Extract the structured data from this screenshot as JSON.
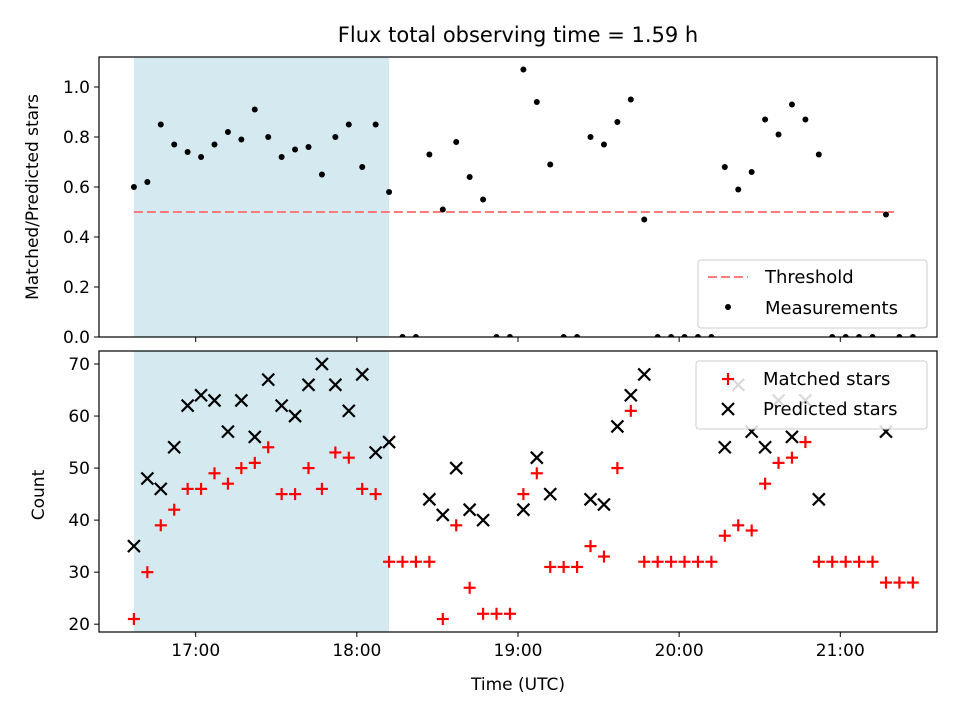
{
  "chart_data": [
    {
      "type": "scatter",
      "title": "Flux total observing time = 1.59 h",
      "xlabel": "",
      "ylabel": "Matched/Predicted stars",
      "xlim": [
        "16:24",
        "21:36"
      ],
      "ylim": [
        0,
        1.12
      ],
      "yticks": [
        "0.0",
        "0.2",
        "0.4",
        "0.6",
        "0.8",
        "1.0"
      ],
      "xticks": [
        "17:00",
        "18:00",
        "19:00",
        "20:00",
        "21:00"
      ],
      "shaded_span": [
        "16:37",
        "18:12"
      ],
      "shade_color": "#d4eaf0",
      "legend": "bottom-right",
      "threshold": {
        "name": "Threshold",
        "value": 0.5,
        "x": [
          "16:37",
          "21:20"
        ],
        "color": "#ff7b7b"
      },
      "measurements": {
        "name": "Measurements",
        "color": "#000000",
        "x": [
          "16:37",
          "16:42",
          "16:47",
          "16:52",
          "16:57",
          "17:02",
          "17:07",
          "17:12",
          "17:17",
          "17:22",
          "17:27",
          "17:32",
          "17:37",
          "17:42",
          "17:47",
          "17:52",
          "17:57",
          "18:02",
          "18:07",
          "18:12",
          "18:17",
          "18:22",
          "18:27",
          "18:32",
          "18:37",
          "18:42",
          "18:47",
          "18:52",
          "18:57",
          "19:02",
          "19:07",
          "19:12",
          "19:17",
          "19:22",
          "19:27",
          "19:32",
          "19:37",
          "19:42",
          "19:47",
          "19:52",
          "19:57",
          "20:02",
          "20:07",
          "20:12",
          "20:17",
          "20:22",
          "20:27",
          "20:32",
          "20:37",
          "20:42",
          "20:47",
          "20:52",
          "20:57",
          "21:02",
          "21:07",
          "21:12",
          "21:17",
          "21:22",
          "21:27"
        ],
        "y": [
          0.6,
          0.62,
          0.85,
          0.77,
          0.74,
          0.72,
          0.77,
          0.82,
          0.79,
          0.91,
          0.8,
          0.72,
          0.75,
          0.76,
          0.65,
          0.8,
          0.85,
          0.68,
          0.85,
          0.58,
          0,
          0,
          0.73,
          0.51,
          0.78,
          0.64,
          0.55,
          0,
          0,
          1.07,
          0.94,
          0.69,
          0,
          0,
          0.8,
          0.77,
          0.86,
          0.95,
          0.47,
          0,
          0,
          0,
          0,
          0,
          0.68,
          0.59,
          0.66,
          0.87,
          0.81,
          0.93,
          0.87,
          0.73,
          0,
          0,
          0,
          0,
          0.49,
          0,
          0
        ]
      }
    },
    {
      "type": "scatter",
      "title": "",
      "xlabel": "Time (UTC)",
      "ylabel": "Count",
      "xlim": [
        "16:24",
        "21:36"
      ],
      "ylim": [
        18.5,
        72.5
      ],
      "yticks": [
        "20",
        "30",
        "40",
        "50",
        "60",
        "70"
      ],
      "xticks": [
        "17:00",
        "18:00",
        "19:00",
        "20:00",
        "21:00"
      ],
      "shaded_span": [
        "16:37",
        "18:12"
      ],
      "legend": "top-right",
      "series": [
        {
          "name": "Matched stars",
          "marker": "+",
          "color": "#ff0000",
          "x": [
            "16:37",
            "16:42",
            "16:47",
            "16:52",
            "16:57",
            "17:02",
            "17:07",
            "17:12",
            "17:17",
            "17:22",
            "17:27",
            "17:32",
            "17:37",
            "17:42",
            "17:47",
            "17:52",
            "17:57",
            "18:02",
            "18:07",
            "18:12",
            "18:17",
            "18:22",
            "18:27",
            "18:32",
            "18:37",
            "18:42",
            "18:47",
            "18:52",
            "18:57",
            "19:02",
            "19:07",
            "19:12",
            "19:17",
            "19:22",
            "19:27",
            "19:32",
            "19:37",
            "19:42",
            "19:47",
            "19:52",
            "19:57",
            "20:02",
            "20:07",
            "20:12",
            "20:17",
            "20:22",
            "20:27",
            "20:32",
            "20:37",
            "20:42",
            "20:47",
            "20:52",
            "20:57",
            "21:02",
            "21:07",
            "21:12",
            "21:17",
            "21:22",
            "21:27"
          ],
          "y": [
            21,
            30,
            39,
            42,
            46,
            46,
            49,
            47,
            50,
            51,
            54,
            45,
            45,
            50,
            46,
            53,
            52,
            46,
            45,
            32,
            32,
            32,
            32,
            21,
            39,
            27,
            22,
            22,
            22,
            45,
            49,
            31,
            31,
            31,
            35,
            33,
            50,
            61,
            32,
            32,
            32,
            32,
            32,
            32,
            37,
            39,
            38,
            47,
            51,
            52,
            55,
            32,
            32,
            32,
            32,
            32,
            28,
            28,
            28
          ]
        },
        {
          "name": "Predicted stars",
          "marker": "x",
          "color": "#000000",
          "x": [
            "16:37",
            "16:42",
            "16:47",
            "16:52",
            "16:57",
            "17:02",
            "17:07",
            "17:12",
            "17:17",
            "17:22",
            "17:27",
            "17:32",
            "17:37",
            "17:42",
            "17:47",
            "17:52",
            "17:57",
            "18:02",
            "18:07",
            "18:12",
            "18:27",
            "18:32",
            "18:37",
            "18:42",
            "18:47",
            "19:02",
            "19:07",
            "19:12",
            "19:27",
            "19:32",
            "19:37",
            "19:42",
            "19:47",
            "20:17",
            "20:22",
            "20:27",
            "20:32",
            "20:37",
            "20:42",
            "20:47",
            "20:52",
            "21:17"
          ],
          "y": [
            35,
            48,
            46,
            54,
            62,
            64,
            63,
            57,
            63,
            56,
            67,
            62,
            60,
            66,
            70,
            66,
            61,
            68,
            53,
            55,
            44,
            41,
            50,
            42,
            40,
            42,
            52,
            45,
            44,
            43,
            58,
            64,
            68,
            54,
            66,
            57,
            54,
            63,
            56,
            63,
            44,
            57
          ]
        }
      ]
    }
  ]
}
